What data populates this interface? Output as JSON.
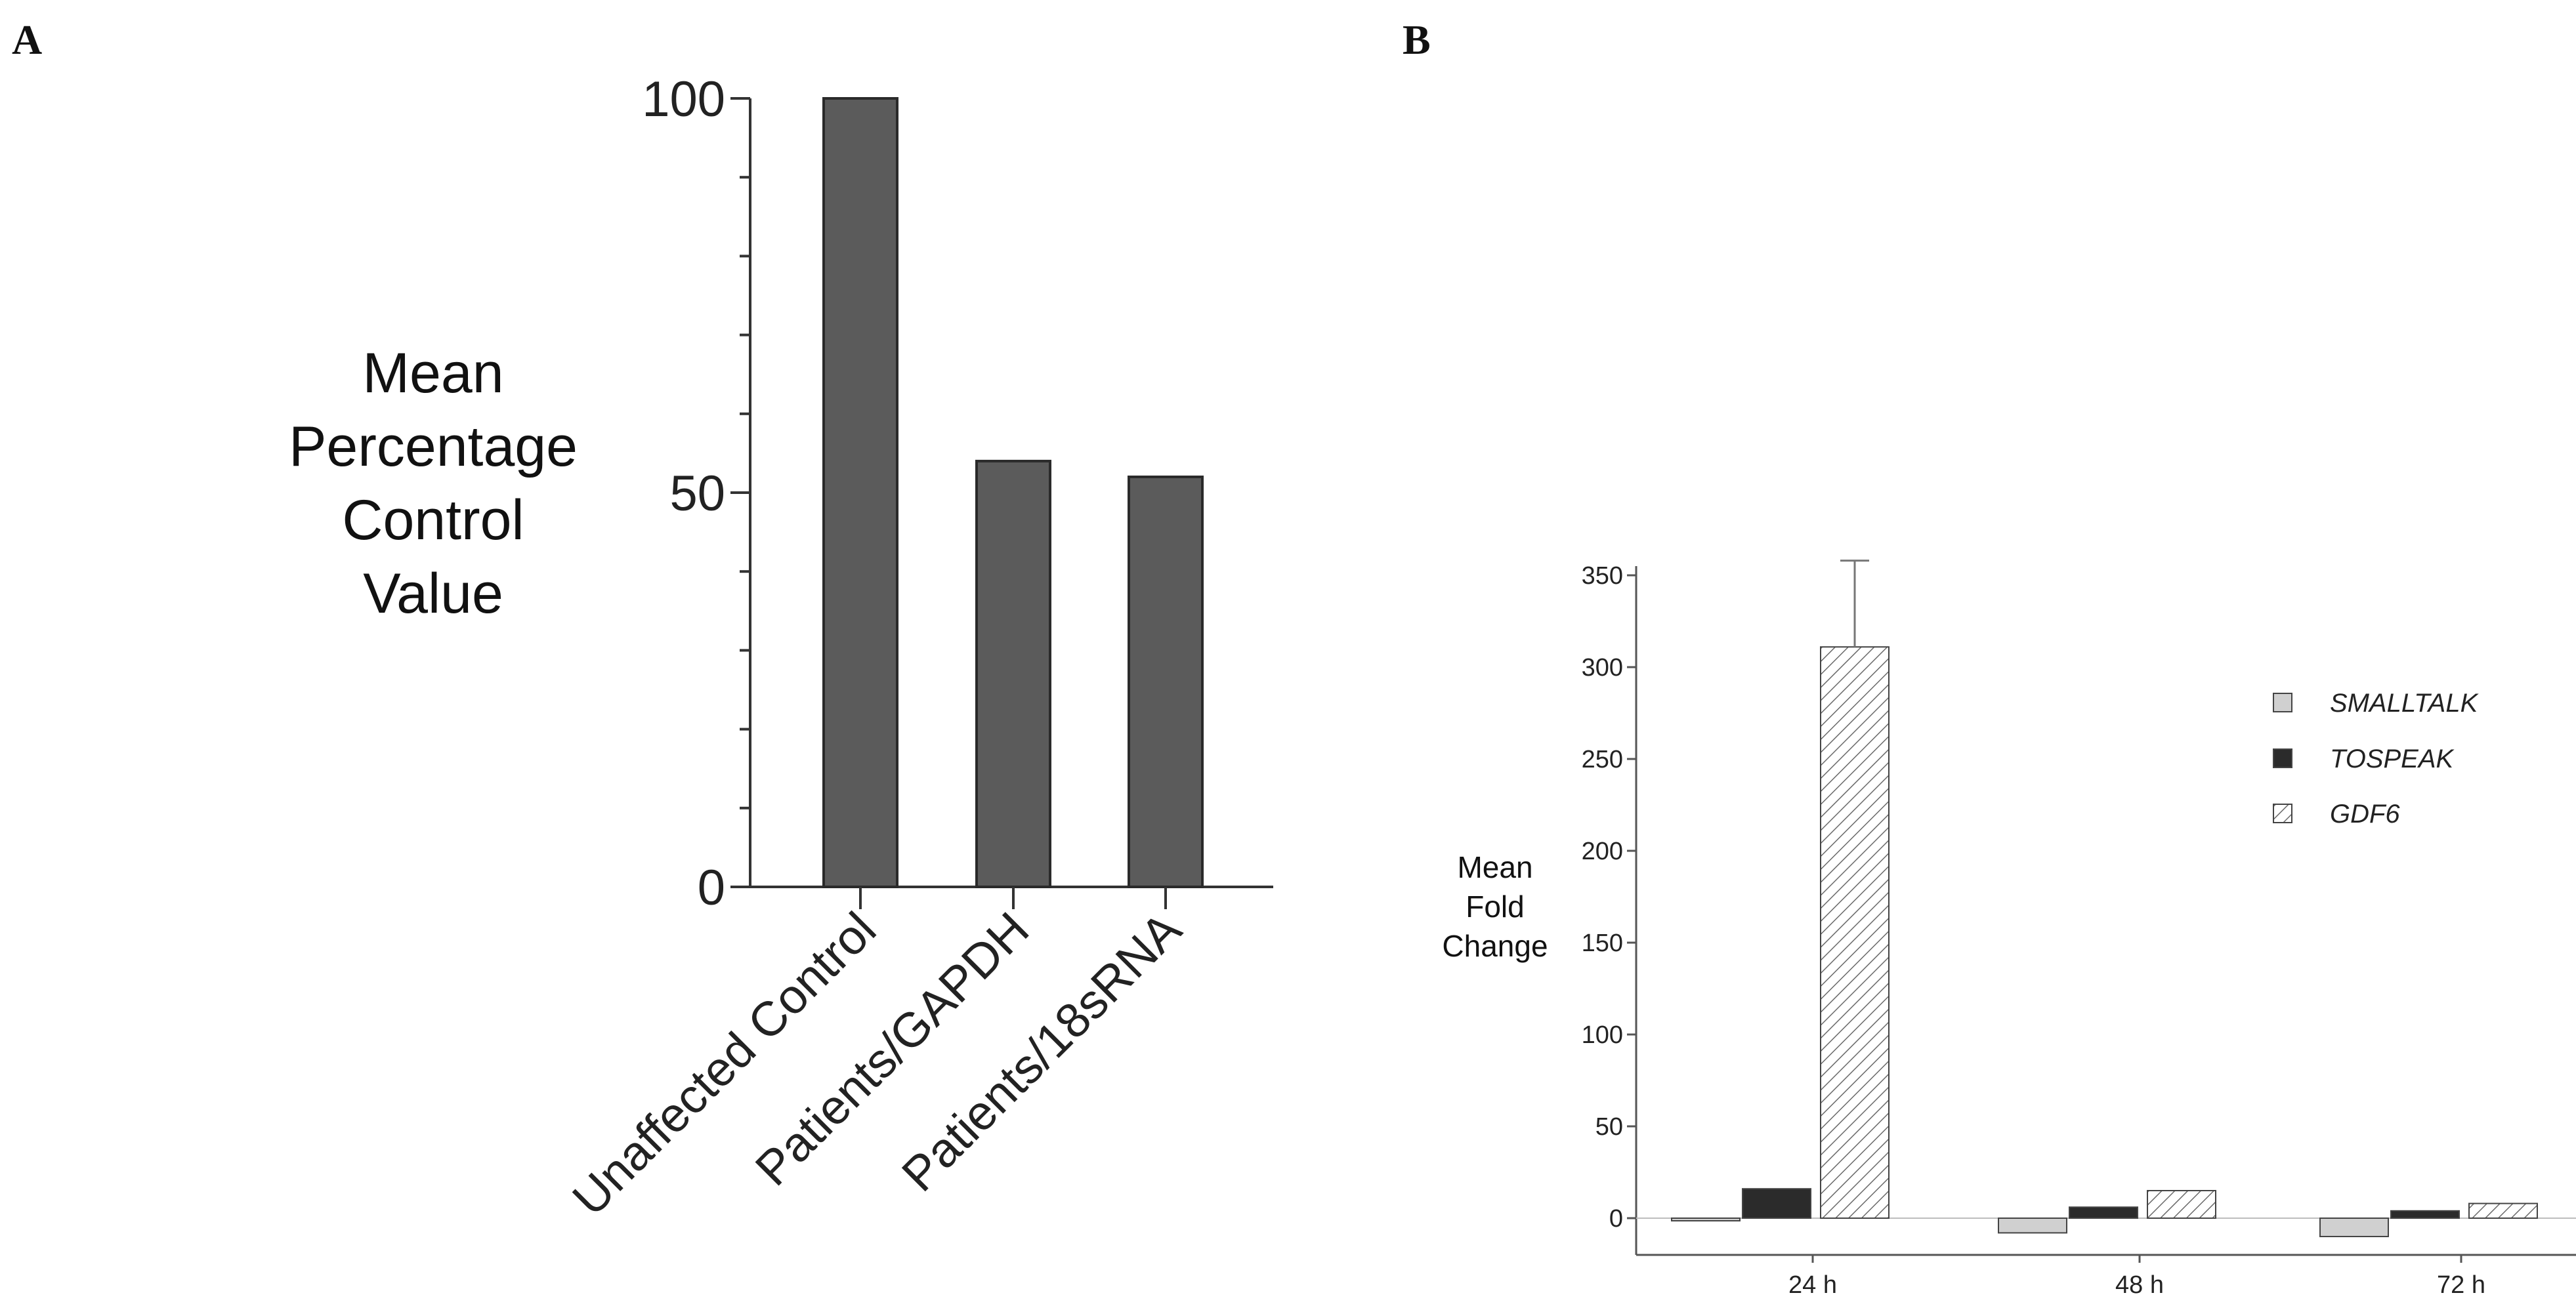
{
  "panels": {
    "a": "A",
    "b": "B"
  },
  "chart_data": [
    {
      "type": "bar",
      "panel": "A",
      "title": "",
      "ylabel_lines": [
        "Mean",
        "Percentage",
        "Control",
        "Value"
      ],
      "categories": [
        "Unaffected Control",
        "Patients/GAPDH",
        "Patients/18sRNA"
      ],
      "values": [
        100,
        54,
        52
      ],
      "ylim": [
        0,
        100
      ],
      "yticks": [
        0,
        50,
        100
      ],
      "grid": false,
      "colors": {
        "bar": "#5b5b5b",
        "edge": "#2a2a2a",
        "axis": "#333333"
      }
    },
    {
      "type": "bar",
      "panel": "B",
      "title": "",
      "ylabel_lines": [
        "Mean",
        "Fold",
        "Change"
      ],
      "categories": [
        "24 h",
        "48 h",
        "72 h"
      ],
      "ylim": [
        -20,
        355
      ],
      "yticks": [
        0,
        50,
        100,
        150,
        200,
        250,
        300,
        350
      ],
      "grid": false,
      "legend_position": "right",
      "series": [
        {
          "name": "SMALLTALK",
          "values": [
            -1,
            -8,
            -10
          ],
          "fill": "#d0d0d0",
          "pattern": "solid"
        },
        {
          "name": "TOSPEAK",
          "values": [
            16,
            6,
            4
          ],
          "fill": "#2b2b2b",
          "pattern": "solid"
        },
        {
          "name": "GDF6",
          "values": [
            311,
            15,
            8
          ],
          "error": [
            47,
            0,
            0
          ],
          "fill": "#ffffff",
          "pattern": "hatch"
        }
      ],
      "colors": {
        "axis": "#555555",
        "hatch": "#666666"
      }
    }
  ]
}
